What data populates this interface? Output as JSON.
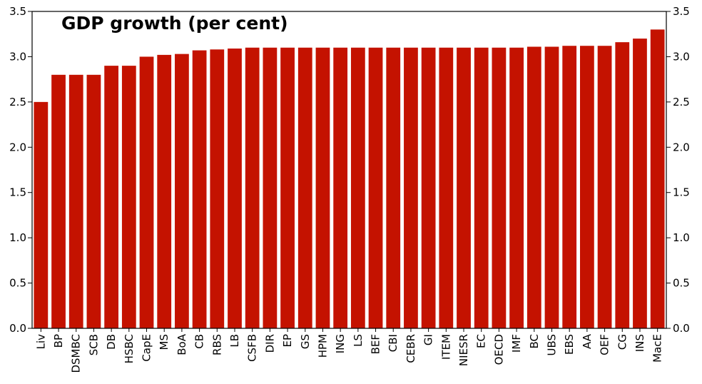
{
  "chart_data": {
    "type": "bar",
    "title": "GDP growth (per cent)",
    "xlabel": "",
    "ylabel": "",
    "ylim": [
      0,
      3.5
    ],
    "yticks": [
      "0.0",
      "0.5",
      "1.0",
      "1.5",
      "2.0",
      "2.5",
      "3.0",
      "3.5"
    ],
    "grid": false,
    "bar_color": "#c41200",
    "categories": [
      "Liv",
      "BP",
      "DSMBC",
      "SCB",
      "DB",
      "HSBC",
      "CapE",
      "MS",
      "BoA",
      "CB",
      "RBS",
      "LB",
      "CSFB",
      "DIR",
      "EP",
      "GS",
      "HPM",
      "ING",
      "LS",
      "BEF",
      "CBI",
      "CEBR",
      "GI",
      "ITEM",
      "NIESR",
      "EC",
      "OECD",
      "IMF",
      "BC",
      "UBS",
      "EBS",
      "AA",
      "OEF",
      "CG",
      "INS",
      "MacE"
    ],
    "values": [
      2.5,
      2.8,
      2.8,
      2.8,
      2.9,
      2.9,
      3.0,
      3.02,
      3.03,
      3.07,
      3.08,
      3.09,
      3.1,
      3.1,
      3.1,
      3.1,
      3.1,
      3.1,
      3.1,
      3.1,
      3.1,
      3.1,
      3.1,
      3.1,
      3.1,
      3.1,
      3.1,
      3.1,
      3.11,
      3.11,
      3.12,
      3.12,
      3.12,
      3.16,
      3.2,
      3.3
    ]
  }
}
